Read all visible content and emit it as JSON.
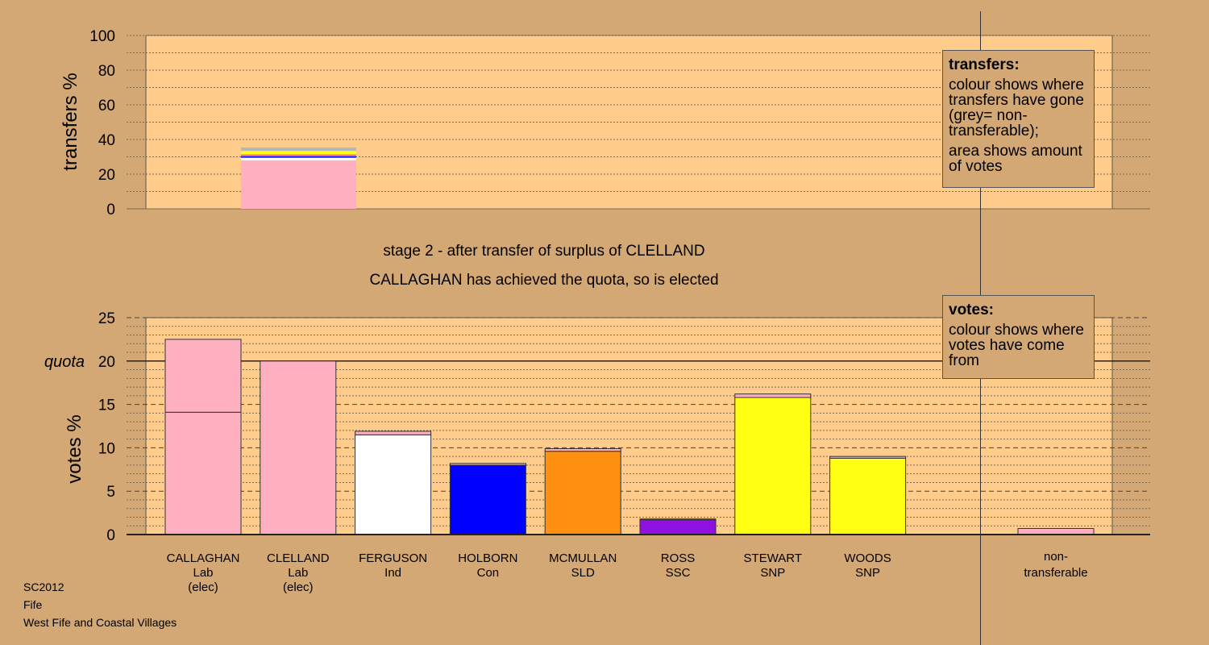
{
  "titles": {
    "stage": "stage 2 - after transfer of surplus of CLELLAND",
    "result": "CALLAGHAN has achieved the quota, so is elected"
  },
  "legend_transfers": {
    "heading": "transfers:",
    "text1": "colour shows where transfers have gone (grey= non-transferable);",
    "text2": "area shows amount of votes"
  },
  "legend_votes": {
    "heading": "votes:",
    "text1": "colour shows where votes have come from"
  },
  "caption": {
    "line1": "SC2012",
    "line2": "Fife",
    "line3": "West Fife and Coastal Villages"
  },
  "colors": {
    "background": "#d4a874",
    "plot_area": "#ffcc8c",
    "Lab": "#ffb0c0",
    "Ind": "#ffffff",
    "Con": "#0000ff",
    "SLD": "#ff9010",
    "SSC": "#9010e0",
    "SNP": "#ffff14",
    "non_transferable": "#b8b8b8"
  },
  "chart_data": [
    {
      "type": "bar",
      "name": "transfers",
      "ylabel": "transfers %",
      "ylim": [
        0,
        100
      ],
      "yticks": [
        0,
        20,
        40,
        60,
        80,
        100
      ],
      "stacked_segments": [
        {
          "party": "Lab",
          "value": 28
        },
        {
          "party": "Ind",
          "value": 1.5
        },
        {
          "party": "Con",
          "value": 0.8
        },
        {
          "party": "SLD",
          "value": 0.7
        },
        {
          "party": "SSC",
          "value": 0.3
        },
        {
          "party": "SNP",
          "value": 1.5
        },
        {
          "party": "SNP",
          "value": 0.6
        },
        {
          "party": "non_transferable",
          "value": 2.0
        }
      ]
    },
    {
      "type": "bar",
      "name": "votes",
      "ylabel": "votes %",
      "ylim": [
        0,
        25
      ],
      "yticks": [
        0,
        5,
        10,
        15,
        20,
        25
      ],
      "quota": 20,
      "quota_label": "quota",
      "categories": [
        {
          "name": "CALLAGHAN",
          "party": "Lab",
          "status": "(elec)",
          "own": 14.1,
          "received": 8.4
        },
        {
          "name": "CLELLAND",
          "party": "Lab",
          "status": "(elec)",
          "own": 20.0,
          "received": 0
        },
        {
          "name": "FERGUSON",
          "party": "Ind",
          "status": "",
          "own": 11.5,
          "received": 0.4
        },
        {
          "name": "HOLBORN",
          "party": "Con",
          "status": "",
          "own": 8.0,
          "received": 0.2
        },
        {
          "name": "MCMULLAN",
          "party": "SLD",
          "status": "",
          "own": 9.6,
          "received": 0.3
        },
        {
          "name": "ROSS",
          "party": "SSC",
          "status": "",
          "own": 1.7,
          "received": 0.1
        },
        {
          "name": "STEWART",
          "party": "SNP",
          "status": "",
          "own": 15.8,
          "received": 0.4
        },
        {
          "name": "WOODS",
          "party": "SNP",
          "status": "",
          "own": 8.8,
          "received": 0.2
        }
      ],
      "non_transferable": {
        "label1": "non-",
        "label2": "transferable",
        "value": 0.7
      }
    }
  ]
}
